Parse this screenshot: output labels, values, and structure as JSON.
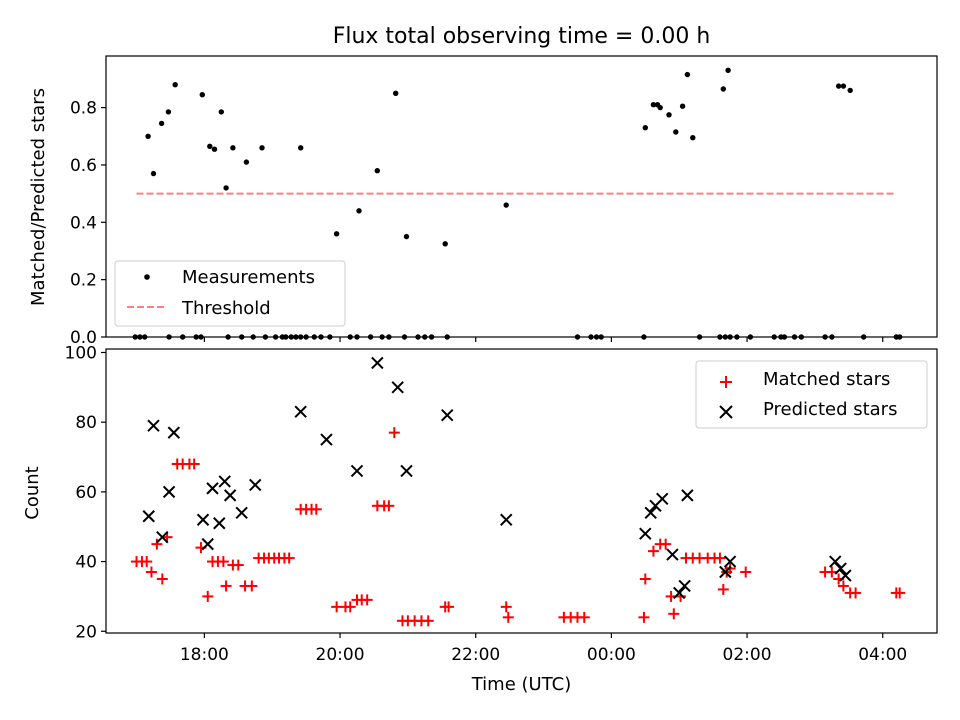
{
  "chart_data": [
    {
      "type": "scatter",
      "title": "Flux total observing time = 0.00 h",
      "xlabel": "",
      "ylabel": "Matched/Predicted stars",
      "xlim_hours": [
        16.55,
        28.8
      ],
      "ylim": [
        0,
        0.98
      ],
      "yticks": [
        0.0,
        0.2,
        0.4,
        0.6,
        0.8
      ],
      "ytick_labels": [
        "0.0",
        "0.2",
        "0.4",
        "0.6",
        "0.8"
      ],
      "legend": {
        "position": "lower-left",
        "entries": [
          "Measurements",
          "Threshold"
        ]
      },
      "threshold": {
        "name": "Threshold",
        "y": 0.5,
        "x_range_hours": [
          17.0,
          28.2
        ],
        "color": "#ff7f7f",
        "style": "dashed"
      },
      "series": [
        {
          "name": "Measurements",
          "color": "#000000",
          "points": [
            [
              17.17,
              0.7
            ],
            [
              17.25,
              0.57
            ],
            [
              17.37,
              0.745
            ],
            [
              17.47,
              0.785
            ],
            [
              17.57,
              0.88
            ],
            [
              17.97,
              0.845
            ],
            [
              18.08,
              0.665
            ],
            [
              18.15,
              0.655
            ],
            [
              18.25,
              0.785
            ],
            [
              18.32,
              0.52
            ],
            [
              18.42,
              0.66
            ],
            [
              18.62,
              0.61
            ],
            [
              18.85,
              0.66
            ],
            [
              19.42,
              0.66
            ],
            [
              19.95,
              0.36
            ],
            [
              20.28,
              0.44
            ],
            [
              20.55,
              0.58
            ],
            [
              20.82,
              0.85
            ],
            [
              20.98,
              0.35
            ],
            [
              21.55,
              0.325
            ],
            [
              22.45,
              0.46
            ],
            [
              24.5,
              0.73
            ],
            [
              24.62,
              0.81
            ],
            [
              24.68,
              0.81
            ],
            [
              24.72,
              0.8
            ],
            [
              24.85,
              0.775
            ],
            [
              24.95,
              0.715
            ],
            [
              25.05,
              0.805
            ],
            [
              25.12,
              0.915
            ],
            [
              25.2,
              0.695
            ],
            [
              25.65,
              0.865
            ],
            [
              25.72,
              0.93
            ],
            [
              27.35,
              0.875
            ],
            [
              27.42,
              0.875
            ],
            [
              27.52,
              0.86
            ],
            [
              16.98,
              0
            ],
            [
              17.05,
              0
            ],
            [
              17.12,
              0
            ],
            [
              17.48,
              0
            ],
            [
              17.68,
              0
            ],
            [
              17.88,
              0
            ],
            [
              17.95,
              0
            ],
            [
              18.35,
              0
            ],
            [
              18.55,
              0
            ],
            [
              18.72,
              0
            ],
            [
              18.9,
              0
            ],
            [
              19.05,
              0
            ],
            [
              19.15,
              0
            ],
            [
              19.2,
              0
            ],
            [
              19.28,
              0
            ],
            [
              19.35,
              0
            ],
            [
              19.42,
              0
            ],
            [
              19.5,
              0
            ],
            [
              19.62,
              0
            ],
            [
              19.72,
              0
            ],
            [
              19.85,
              0
            ],
            [
              20.15,
              0
            ],
            [
              20.25,
              0
            ],
            [
              20.45,
              0
            ],
            [
              20.62,
              0
            ],
            [
              20.72,
              0
            ],
            [
              20.95,
              0
            ],
            [
              21.15,
              0
            ],
            [
              21.25,
              0
            ],
            [
              21.35,
              0
            ],
            [
              21.58,
              0
            ],
            [
              23.5,
              0
            ],
            [
              23.7,
              0
            ],
            [
              23.78,
              0
            ],
            [
              23.85,
              0
            ],
            [
              24.48,
              0
            ],
            [
              25.3,
              0
            ],
            [
              25.6,
              0
            ],
            [
              25.68,
              0
            ],
            [
              25.75,
              0
            ],
            [
              25.85,
              0
            ],
            [
              26.05,
              0
            ],
            [
              26.4,
              0
            ],
            [
              26.5,
              0
            ],
            [
              26.55,
              0
            ],
            [
              26.7,
              0
            ],
            [
              26.8,
              0
            ],
            [
              27.15,
              0
            ],
            [
              27.25,
              0
            ],
            [
              27.72,
              0
            ],
            [
              28.2,
              0
            ],
            [
              28.25,
              0
            ]
          ]
        }
      ]
    },
    {
      "type": "scatter",
      "title": "",
      "xlabel": "Time (UTC)",
      "ylabel": "Count",
      "xlim_hours": [
        16.55,
        28.8
      ],
      "ylim": [
        19.5,
        101
      ],
      "yticks": [
        20,
        40,
        60,
        80,
        100
      ],
      "ytick_labels": [
        "20",
        "40",
        "60",
        "80",
        "100"
      ],
      "xticks_hours": [
        18,
        20,
        22,
        24,
        26,
        28
      ],
      "xtick_labels": [
        "18:00",
        "20:00",
        "22:00",
        "00:00",
        "02:00",
        "04:00"
      ],
      "legend": {
        "position": "top-right",
        "entries": [
          "Matched stars",
          "Predicted stars"
        ]
      },
      "series": [
        {
          "name": "Matched stars",
          "color": "#ff0000",
          "marker": "plus",
          "points": [
            [
              17.0,
              40
            ],
            [
              17.08,
              40
            ],
            [
              17.15,
              40
            ],
            [
              17.22,
              37
            ],
            [
              17.3,
              45
            ],
            [
              17.38,
              35
            ],
            [
              17.45,
              47
            ],
            [
              17.6,
              68
            ],
            [
              17.68,
              68
            ],
            [
              17.78,
              68
            ],
            [
              17.85,
              68
            ],
            [
              17.95,
              44
            ],
            [
              18.05,
              30
            ],
            [
              18.12,
              40
            ],
            [
              18.2,
              40
            ],
            [
              18.28,
              40
            ],
            [
              18.32,
              33
            ],
            [
              18.42,
              39
            ],
            [
              18.5,
              39
            ],
            [
              18.6,
              33
            ],
            [
              18.7,
              33
            ],
            [
              18.8,
              41
            ],
            [
              18.88,
              41
            ],
            [
              18.95,
              41
            ],
            [
              19.03,
              41
            ],
            [
              19.1,
              41
            ],
            [
              19.18,
              41
            ],
            [
              19.25,
              41
            ],
            [
              19.42,
              55
            ],
            [
              19.5,
              55
            ],
            [
              19.58,
              55
            ],
            [
              19.65,
              55
            ],
            [
              19.95,
              27
            ],
            [
              20.08,
              27
            ],
            [
              20.15,
              27
            ],
            [
              20.25,
              29
            ],
            [
              20.32,
              29
            ],
            [
              20.4,
              29
            ],
            [
              20.55,
              56
            ],
            [
              20.65,
              56
            ],
            [
              20.72,
              56
            ],
            [
              20.8,
              77
            ],
            [
              20.92,
              23
            ],
            [
              21.0,
              23
            ],
            [
              21.1,
              23
            ],
            [
              21.2,
              23
            ],
            [
              21.3,
              23
            ],
            [
              21.55,
              27
            ],
            [
              21.6,
              27
            ],
            [
              22.45,
              27
            ],
            [
              22.48,
              24
            ],
            [
              23.3,
              24
            ],
            [
              23.4,
              24
            ],
            [
              23.5,
              24
            ],
            [
              23.6,
              24
            ],
            [
              24.48,
              24
            ],
            [
              24.5,
              35
            ],
            [
              24.62,
              43
            ],
            [
              24.72,
              45
            ],
            [
              24.8,
              45
            ],
            [
              24.88,
              30
            ],
            [
              24.92,
              25
            ],
            [
              25.02,
              30
            ],
            [
              25.1,
              41
            ],
            [
              25.2,
              41
            ],
            [
              25.3,
              41
            ],
            [
              25.42,
              41
            ],
            [
              25.52,
              41
            ],
            [
              25.6,
              41
            ],
            [
              25.65,
              32
            ],
            [
              25.7,
              37
            ],
            [
              25.75,
              38
            ],
            [
              25.98,
              37
            ],
            [
              27.15,
              37
            ],
            [
              27.25,
              37
            ],
            [
              27.35,
              35
            ],
            [
              27.42,
              33
            ],
            [
              27.52,
              31
            ],
            [
              27.6,
              31
            ],
            [
              28.2,
              31
            ],
            [
              28.25,
              31
            ]
          ]
        },
        {
          "name": "Predicted stars",
          "color": "#000000",
          "marker": "x",
          "points": [
            [
              17.18,
              53
            ],
            [
              17.25,
              79
            ],
            [
              17.38,
              47
            ],
            [
              17.48,
              60
            ],
            [
              17.55,
              77
            ],
            [
              17.98,
              52
            ],
            [
              18.05,
              45
            ],
            [
              18.12,
              61
            ],
            [
              18.22,
              51
            ],
            [
              18.3,
              63
            ],
            [
              18.38,
              59
            ],
            [
              18.55,
              54
            ],
            [
              18.75,
              62
            ],
            [
              19.42,
              83
            ],
            [
              19.8,
              75
            ],
            [
              20.25,
              66
            ],
            [
              20.55,
              97
            ],
            [
              20.85,
              90
            ],
            [
              20.98,
              66
            ],
            [
              21.58,
              82
            ],
            [
              22.45,
              52
            ],
            [
              24.5,
              48
            ],
            [
              24.58,
              54
            ],
            [
              24.65,
              56
            ],
            [
              24.75,
              58
            ],
            [
              24.9,
              42
            ],
            [
              25.0,
              31
            ],
            [
              25.08,
              33
            ],
            [
              25.12,
              59
            ],
            [
              25.68,
              37
            ],
            [
              25.75,
              40
            ],
            [
              27.3,
              40
            ],
            [
              27.38,
              38
            ],
            [
              27.45,
              36
            ]
          ]
        }
      ]
    }
  ]
}
